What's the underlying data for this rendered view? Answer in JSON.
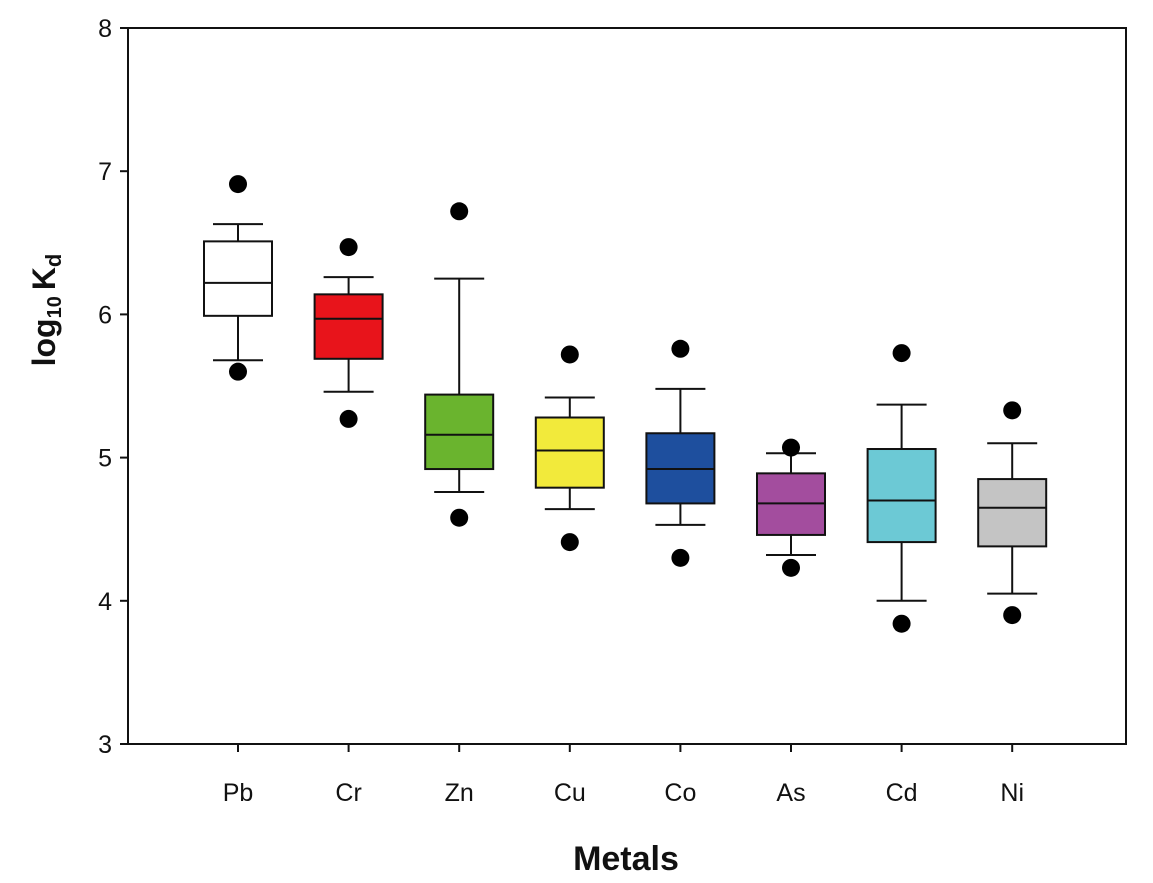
{
  "chart_data": {
    "type": "box",
    "xlabel": "Metals",
    "ylabel_main": "log",
    "ylabel_sub": "10",
    "ylabel_k": "K",
    "ylabel_k_sub": "d",
    "ylim": [
      3,
      8
    ],
    "yticks": [
      "3",
      "4",
      "5",
      "6",
      "7",
      "8"
    ],
    "grid": false,
    "categories": [
      "Pb",
      "Cr",
      "Zn",
      "Cu",
      "Co",
      "As",
      "Cd",
      "Ni"
    ],
    "boxes": [
      {
        "category": "Pb",
        "whisker_low": 5.68,
        "q1": 5.99,
        "median": 6.22,
        "q3": 6.51,
        "whisker_high": 6.63,
        "outliers": [
          5.6,
          6.91
        ],
        "color": "#ffffff"
      },
      {
        "category": "Cr",
        "whisker_low": 5.46,
        "q1": 5.69,
        "median": 5.97,
        "q3": 6.14,
        "whisker_high": 6.26,
        "outliers": [
          5.27,
          6.47
        ],
        "color": "#e8141b"
      },
      {
        "category": "Zn",
        "whisker_low": 4.76,
        "q1": 4.92,
        "median": 5.16,
        "q3": 5.44,
        "whisker_high": 6.25,
        "outliers": [
          4.58,
          6.72
        ],
        "color": "#6ab42e"
      },
      {
        "category": "Cu",
        "whisker_low": 4.64,
        "q1": 4.79,
        "median": 5.05,
        "q3": 5.28,
        "whisker_high": 5.42,
        "outliers": [
          4.41,
          5.72
        ],
        "color": "#f2ea3b"
      },
      {
        "category": "Co",
        "whisker_low": 4.53,
        "q1": 4.68,
        "median": 4.92,
        "q3": 5.17,
        "whisker_high": 5.48,
        "outliers": [
          4.3,
          5.76
        ],
        "color": "#1e4f9e"
      },
      {
        "category": "As",
        "whisker_low": 4.32,
        "q1": 4.46,
        "median": 4.68,
        "q3": 4.89,
        "whisker_high": 5.03,
        "outliers": [
          4.23,
          5.07
        ],
        "color": "#a34d9e"
      },
      {
        "category": "Cd",
        "whisker_low": 4.0,
        "q1": 4.41,
        "median": 4.7,
        "q3": 5.06,
        "whisker_high": 5.37,
        "outliers": [
          3.84,
          5.73
        ],
        "color": "#6cc9d5"
      },
      {
        "category": "Ni",
        "whisker_low": 4.05,
        "q1": 4.38,
        "median": 4.65,
        "q3": 4.85,
        "whisker_high": 5.1,
        "outliers": [
          3.9,
          5.33
        ],
        "color": "#c4c4c4"
      }
    ]
  }
}
